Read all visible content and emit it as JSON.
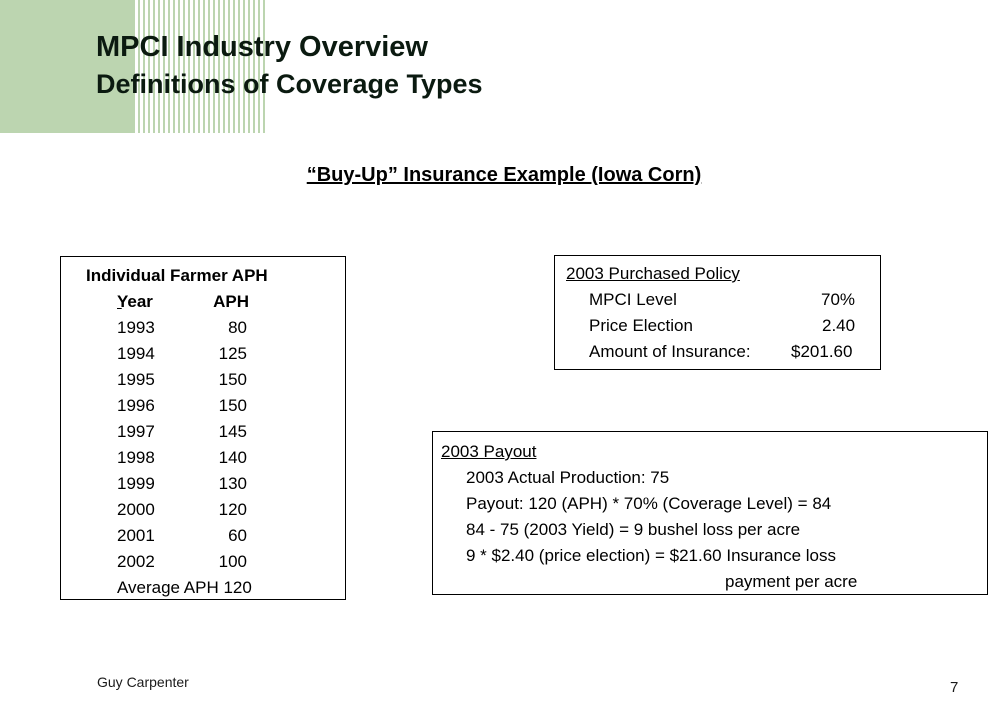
{
  "header": {
    "title": "MPCI Industry Overview",
    "subtitle": "Definitions of Coverage Types"
  },
  "heading": "“Buy-Up” Insurance Example (Iowa Corn)",
  "aph_table": {
    "title": "Individual Farmer APH",
    "col_year": "Year",
    "col_aph": "APH",
    "rows": [
      {
        "year": "1993",
        "aph": "80"
      },
      {
        "year": "1994",
        "aph": "125"
      },
      {
        "year": "1995",
        "aph": "150"
      },
      {
        "year": "1996",
        "aph": "150"
      },
      {
        "year": "1997",
        "aph": "145"
      },
      {
        "year": "1998",
        "aph": "140"
      },
      {
        "year": "1999",
        "aph": "130"
      },
      {
        "year": "2000",
        "aph": "120"
      },
      {
        "year": "2001",
        "aph": "60"
      },
      {
        "year": "2002",
        "aph": "100"
      }
    ],
    "average": "Average APH 120"
  },
  "policy": {
    "title": "2003 Purchased Policy",
    "mpci_label": "MPCI Level",
    "mpci_value": "70%",
    "price_label": "Price Election",
    "price_value": "2.40",
    "amount_label": "Amount of Insurance:",
    "amount_value": "$201.60"
  },
  "payout": {
    "title": "2003 Payout",
    "line1": "2003 Actual Production:  75",
    "line2": "Payout:  120 (APH) * 70% (Coverage Level) = 84",
    "line3": "84 - 75 (2003 Yield) = 9 bushel loss per acre",
    "line4": "9 * $2.40 (price election) = $21.60 Insurance loss",
    "line5": "payment per acre"
  },
  "footer": {
    "company": "Guy Carpenter",
    "page_number": "7"
  },
  "colors": {
    "accent_green": "#bcd5b0"
  }
}
